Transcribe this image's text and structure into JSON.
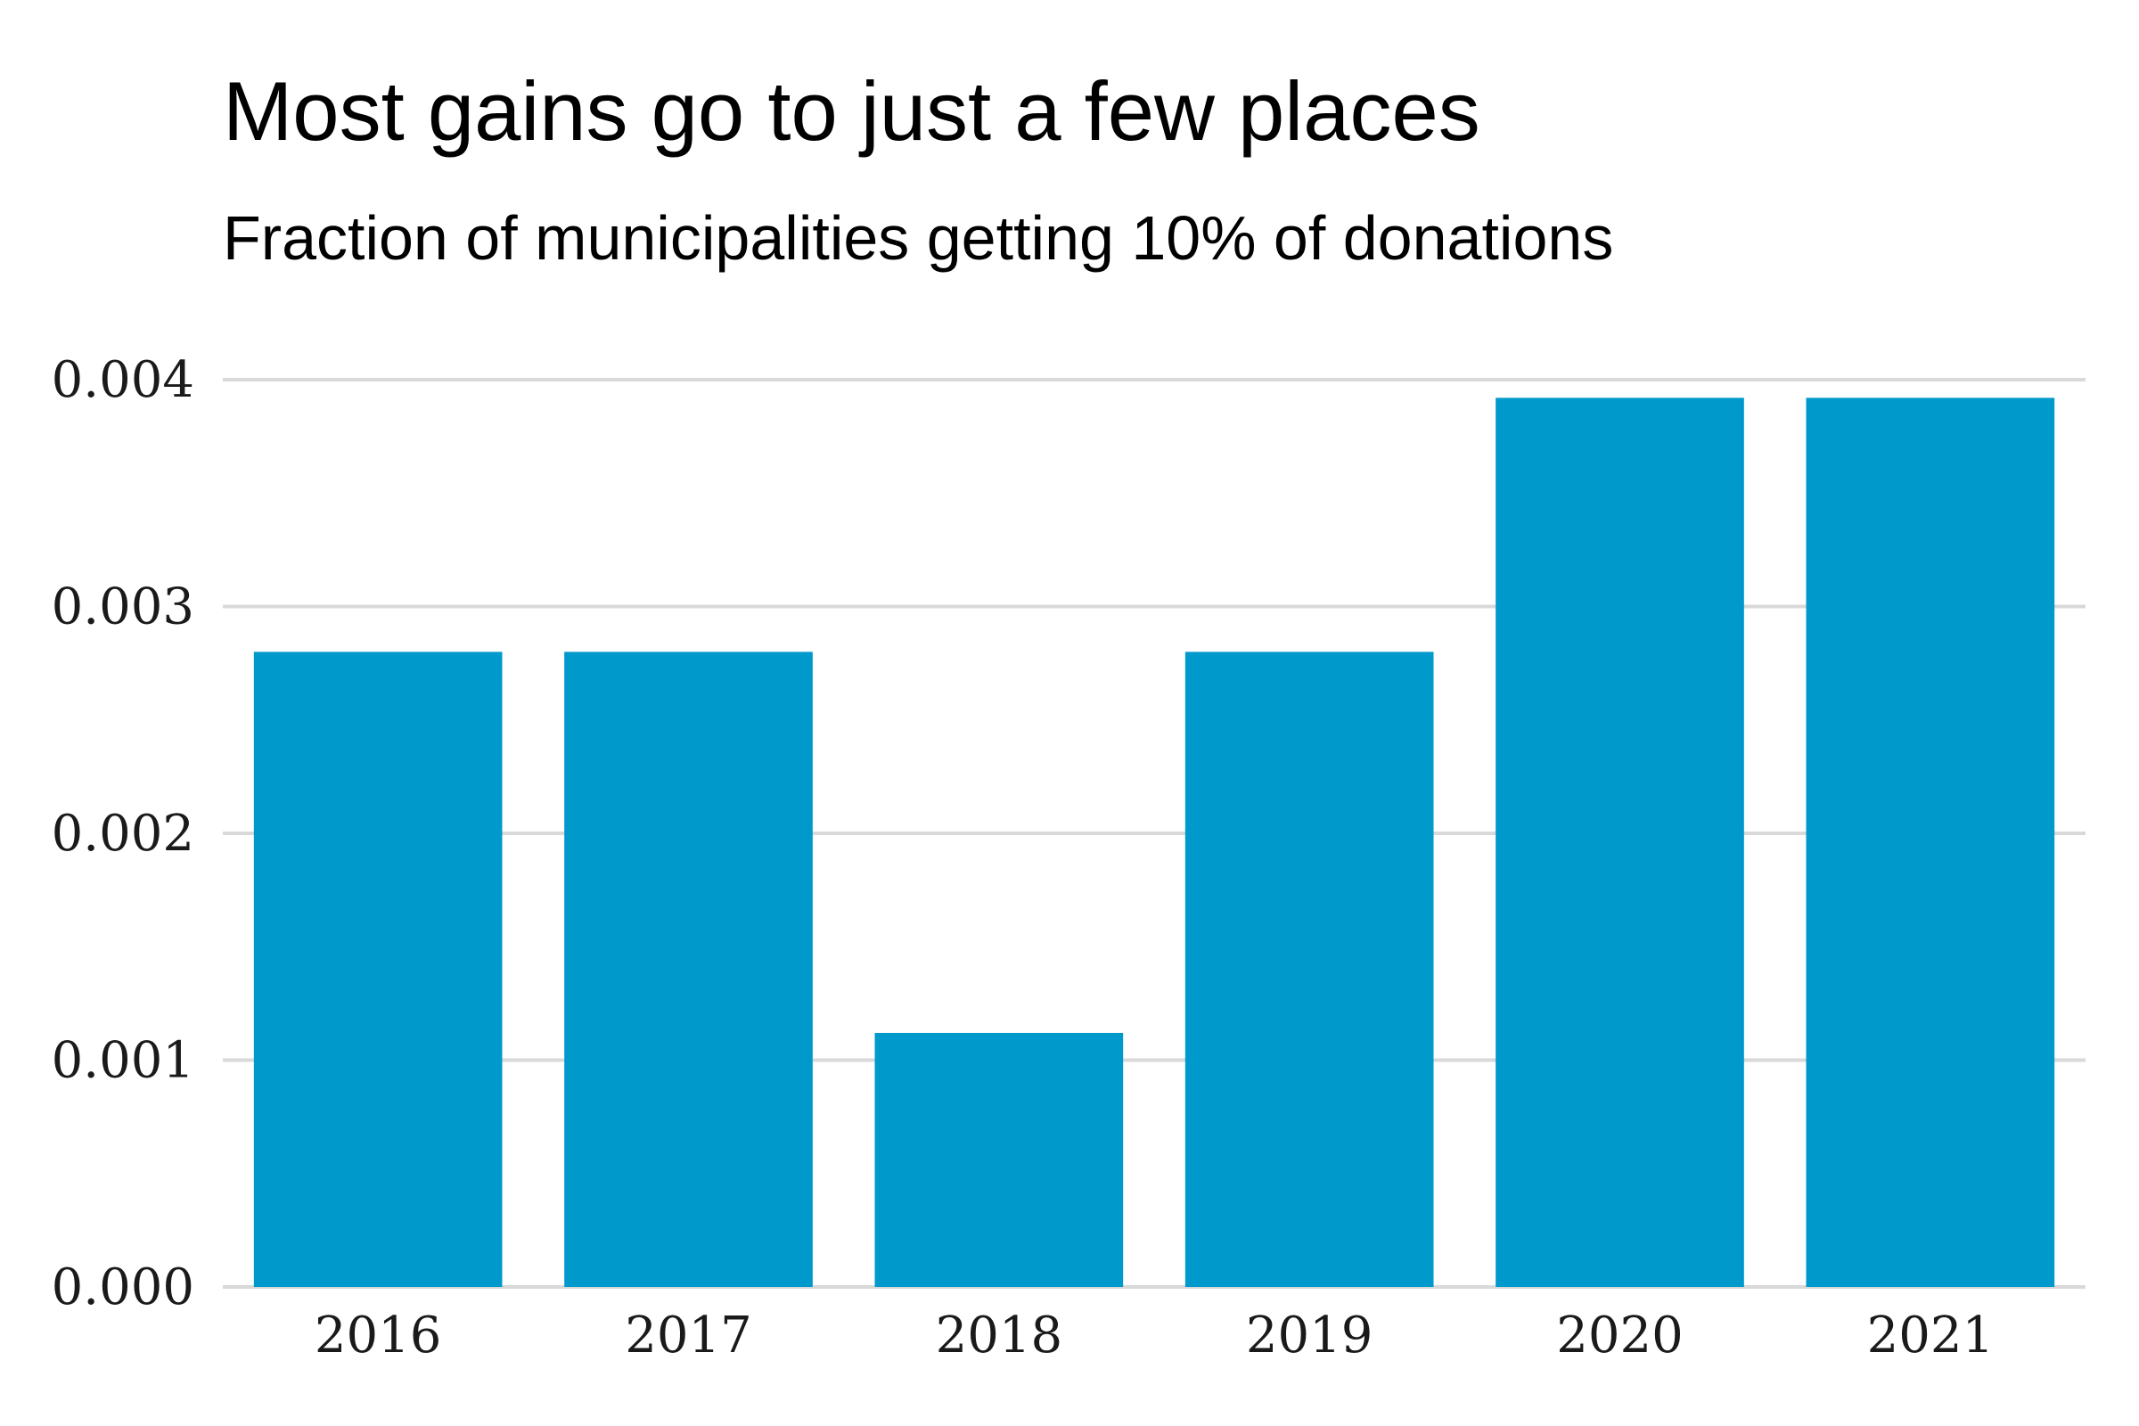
{
  "chart_data": {
    "type": "bar",
    "title": "Most gains go to just a few places",
    "subtitle": "Fraction of municipalities getting 10% of donations",
    "xlabel": "",
    "ylabel": "",
    "categories": [
      "2016",
      "2017",
      "2018",
      "2019",
      "2020",
      "2021"
    ],
    "values": [
      0.0028,
      0.0028,
      0.00112,
      0.0028,
      0.00392,
      0.00392
    ],
    "ylim": [
      0,
      0.004
    ],
    "yticks": [
      0,
      0.001,
      0.002,
      0.003,
      0.004
    ],
    "ytick_labels": [
      "0.000",
      "0.001",
      "0.002",
      "0.003",
      "0.004"
    ],
    "grid": "horizontal",
    "legend": "none",
    "bar_color": "#0099CC",
    "grid_color": "#D9D9D9"
  }
}
